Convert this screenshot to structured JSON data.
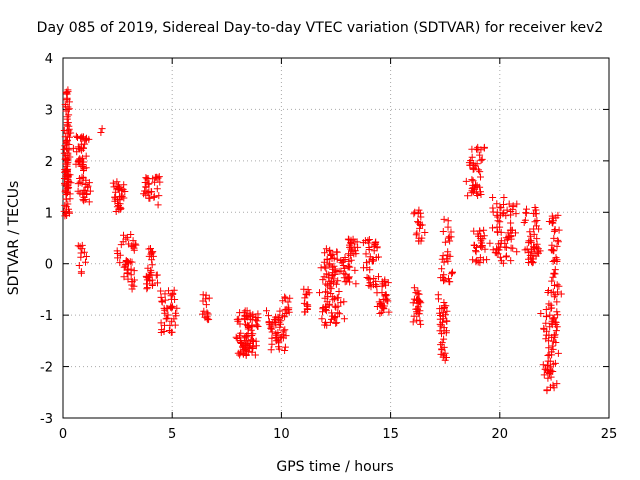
{
  "chart_data": {
    "type": "scatter",
    "title": "Day 085 of 2019, Sidereal Day-to-day VTEC variation (SDTVAR) for receiver kev2",
    "xlabel": "GPS time / hours",
    "ylabel": "SDTVAR / TECUs",
    "xlim": [
      0,
      25
    ],
    "ylim": [
      -3,
      4
    ],
    "xticks": [
      "0",
      "5",
      "10",
      "15",
      "20",
      "25"
    ],
    "yticks": [
      "-3",
      "-2",
      "-1",
      "0",
      "1",
      "2",
      "3",
      "4"
    ],
    "grid": true,
    "marker": "+",
    "series": [
      {
        "name": "SDTVAR",
        "color": "#ff0000",
        "clusters": [
          {
            "x": [
              0.0,
              0.4
            ],
            "y": [
              1.2,
              3.4
            ],
            "n": 70
          },
          {
            "x": [
              0.0,
              0.35
            ],
            "y": [
              0.9,
              2.5
            ],
            "n": 40
          },
          {
            "x": [
              0.4,
              1.3
            ],
            "y": [
              1.8,
              2.5
            ],
            "n": 40
          },
          {
            "x": [
              0.5,
              1.4
            ],
            "y": [
              1.2,
              1.7
            ],
            "n": 25
          },
          {
            "x": [
              0.6,
              1.1
            ],
            "y": [
              -0.2,
              0.4
            ],
            "n": 12
          },
          {
            "x": [
              1.7,
              1.8
            ],
            "y": [
              2.55,
              2.65
            ],
            "n": 2
          },
          {
            "x": [
              2.1,
              3.0
            ],
            "y": [
              1.0,
              1.6
            ],
            "n": 35
          },
          {
            "x": [
              2.4,
              3.6
            ],
            "y": [
              -0.5,
              0.6
            ],
            "n": 45
          },
          {
            "x": [
              3.5,
              4.6
            ],
            "y": [
              1.1,
              1.7
            ],
            "n": 30
          },
          {
            "x": [
              3.7,
              4.4
            ],
            "y": [
              -0.5,
              0.4
            ],
            "n": 30
          },
          {
            "x": [
              4.3,
              5.4
            ],
            "y": [
              -1.4,
              -0.5
            ],
            "n": 40
          },
          {
            "x": [
              6.3,
              6.8
            ],
            "y": [
              -1.1,
              -0.5
            ],
            "n": 15
          },
          {
            "x": [
              7.7,
              9.2
            ],
            "y": [
              -1.8,
              -0.9
            ],
            "n": 90
          },
          {
            "x": [
              9.2,
              10.4
            ],
            "y": [
              -1.7,
              -0.9
            ],
            "n": 50
          },
          {
            "x": [
              10.0,
              10.5
            ],
            "y": [
              -1.0,
              -0.6
            ],
            "n": 12
          },
          {
            "x": [
              11.0,
              11.3
            ],
            "y": [
              -1.0,
              -0.4
            ],
            "n": 15
          },
          {
            "x": [
              11.6,
              13.0
            ],
            "y": [
              -1.2,
              0.3
            ],
            "n": 90
          },
          {
            "x": [
              12.6,
              13.6
            ],
            "y": [
              -0.4,
              0.5
            ],
            "n": 45
          },
          {
            "x": [
              13.7,
              14.6
            ],
            "y": [
              -0.5,
              0.5
            ],
            "n": 40
          },
          {
            "x": [
              14.3,
              15.0
            ],
            "y": [
              -1.0,
              -0.3
            ],
            "n": 30
          },
          {
            "x": [
              16.0,
              16.5
            ],
            "y": [
              -1.2,
              -0.4
            ],
            "n": 30
          },
          {
            "x": [
              16.0,
              16.6
            ],
            "y": [
              0.4,
              1.1
            ],
            "n": 20
          },
          {
            "x": [
              17.1,
              17.7
            ],
            "y": [
              -1.9,
              -0.6
            ],
            "n": 40
          },
          {
            "x": [
              17.2,
              18.0
            ],
            "y": [
              -0.4,
              0.9
            ],
            "n": 30
          },
          {
            "x": [
              18.4,
              19.4
            ],
            "y": [
              1.3,
              2.3
            ],
            "n": 45
          },
          {
            "x": [
              18.6,
              19.6
            ],
            "y": [
              0.0,
              0.7
            ],
            "n": 30
          },
          {
            "x": [
              19.4,
              21.0
            ],
            "y": [
              0.0,
              1.3
            ],
            "n": 70
          },
          {
            "x": [
              21.0,
              22.0
            ],
            "y": [
              0.0,
              1.1
            ],
            "n": 50
          },
          {
            "x": [
              21.8,
              22.9
            ],
            "y": [
              -2.5,
              -0.4
            ],
            "n": 80
          },
          {
            "x": [
              22.2,
              22.8
            ],
            "y": [
              -0.5,
              1.0
            ],
            "n": 35
          }
        ]
      }
    ]
  }
}
